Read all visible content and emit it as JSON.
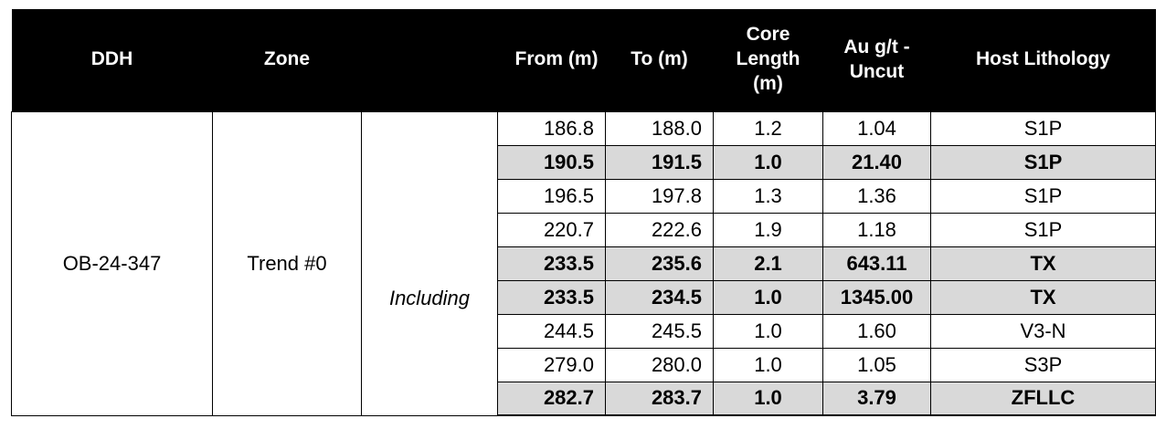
{
  "table": {
    "headers": {
      "ddh": "DDH",
      "zone": "Zone",
      "note": "",
      "from": "From (m)",
      "to": "To (m)",
      "core_line1": "Core",
      "core_line2": "Length",
      "core_line3": "(m)",
      "au_line1": "Au g/t -",
      "au_line2": "Uncut",
      "host": "Host Lithology"
    },
    "ddh": "OB-24-347",
    "zone": "Trend #0",
    "note": "Including",
    "rows": [
      {
        "from": "186.8",
        "to": "188.0",
        "length": "1.2",
        "au": "1.04",
        "host": "S1P",
        "highlight": false
      },
      {
        "from": "190.5",
        "to": "191.5",
        "length": "1.0",
        "au": "21.40",
        "host": "S1P",
        "highlight": true
      },
      {
        "from": "196.5",
        "to": "197.8",
        "length": "1.3",
        "au": "1.36",
        "host": "S1P",
        "highlight": false
      },
      {
        "from": "220.7",
        "to": "222.6",
        "length": "1.9",
        "au": "1.18",
        "host": "S1P",
        "highlight": false
      },
      {
        "from": "233.5",
        "to": "235.6",
        "length": "2.1",
        "au": "643.11",
        "host": "TX",
        "highlight": true
      },
      {
        "from": "233.5",
        "to": "234.5",
        "length": "1.0",
        "au": "1345.00",
        "host": "TX",
        "highlight": true
      },
      {
        "from": "244.5",
        "to": "245.5",
        "length": "1.0",
        "au": "1.60",
        "host": "V3-N",
        "highlight": false
      },
      {
        "from": "279.0",
        "to": "280.0",
        "length": "1.0",
        "au": "1.05",
        "host": "S3P",
        "highlight": false
      },
      {
        "from": "282.7",
        "to": "283.7",
        "length": "1.0",
        "au": "3.79",
        "host": "ZFLLC",
        "highlight": true
      }
    ]
  },
  "colors": {
    "header_bg": "#000000",
    "header_text": "#ffffff",
    "highlight_bg": "#d9d9d9",
    "border": "#000000"
  }
}
